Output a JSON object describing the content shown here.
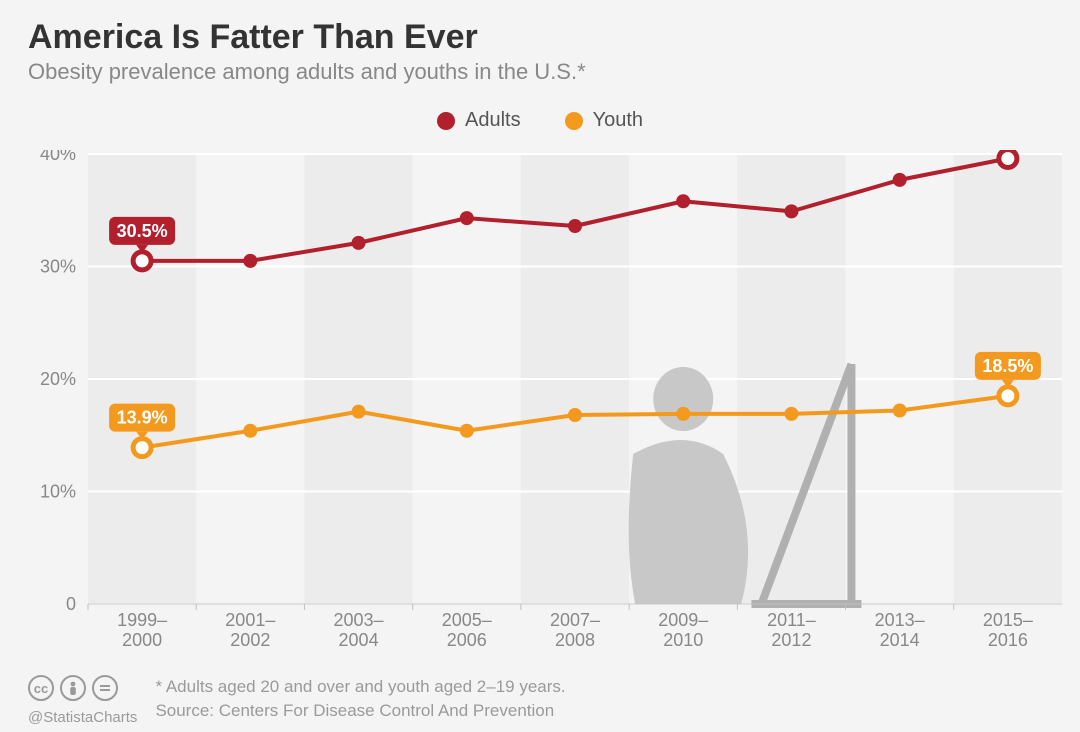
{
  "header": {
    "title": "America Is Fatter Than Ever",
    "subtitle": "Obesity prevalence among adults and youths in the U.S.*"
  },
  "legend": {
    "adults": {
      "label": "Adults",
      "color": "#b21f2d"
    },
    "youth": {
      "label": "Youth",
      "color": "#f39a1e"
    }
  },
  "chart": {
    "type": "line",
    "background_color": "#f4f4f4",
    "plot_background_color": "#ececec",
    "grid_color": "#ffffff",
    "grid_linewidth": 2,
    "axis_line_color": "#bfbfbf",
    "tick_font_color": "#888888",
    "tick_fontsize": 18,
    "ylim": [
      0,
      40
    ],
    "yticks": [
      0,
      "10%",
      "20%",
      "30%",
      "40%"
    ],
    "ytick_values": [
      0,
      10,
      20,
      30,
      40
    ],
    "categories": [
      "1999–\n2000",
      "2001–\n2002",
      "2003–\n2004",
      "2005–\n2006",
      "2007–\n2008",
      "2009–\n2010",
      "2011–\n2012",
      "2013–\n2014",
      "2015–\n2016"
    ],
    "series": {
      "adults": {
        "color": "#b21f2d",
        "line_width": 4,
        "marker_size": 7,
        "endpoint_fill": "#ffffff",
        "endpoint_stroke_width": 5,
        "values": [
          30.5,
          30.5,
          32.1,
          34.3,
          33.6,
          35.8,
          34.9,
          37.7,
          39.6
        ],
        "start_label": "30.5%",
        "end_label": "39.6%"
      },
      "youth": {
        "color": "#f39a1e",
        "line_width": 4,
        "marker_size": 7,
        "endpoint_fill": "#ffffff",
        "endpoint_stroke_width": 5,
        "values": [
          13.9,
          15.4,
          17.1,
          15.4,
          16.8,
          16.9,
          16.9,
          17.2,
          18.5
        ],
        "start_label": "13.9%",
        "end_label": "18.5%"
      }
    },
    "badge": {
      "rx": 6,
      "padx": 10,
      "pady": 5,
      "fontsize": 18
    },
    "silhouette_color": "#c8c8c8",
    "frame_color": "#b0b0b0"
  },
  "footer": {
    "note": "* Adults aged 20 and over and youth aged 2–19 years.",
    "source": "Source: Centers For Disease Control And Prevention",
    "handle": "@StatistaCharts",
    "cc_icons": [
      "cc",
      "by",
      "nd"
    ]
  }
}
